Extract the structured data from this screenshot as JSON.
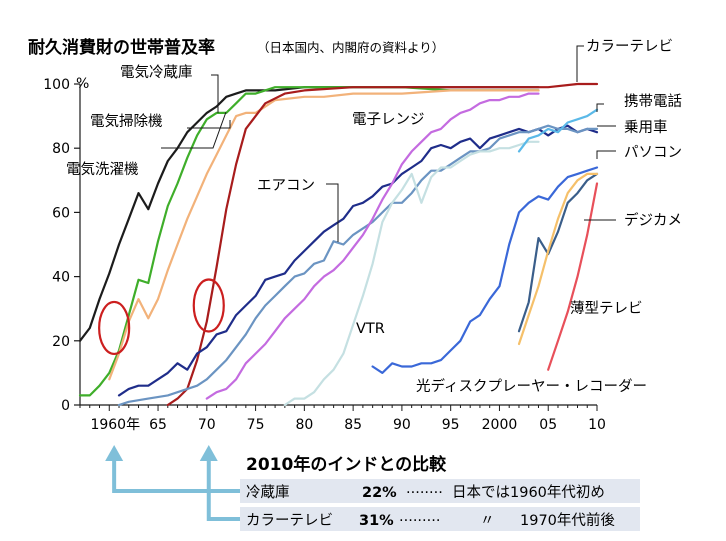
{
  "chart_data": {
    "type": "line",
    "title": "耐久消費財の世帯普及率",
    "subtitle": "（日本国内、内閣府の資料より）",
    "ylabel": "%",
    "ylim": [
      0,
      100
    ],
    "xlim": [
      1957,
      2010
    ],
    "y_ticks": [
      "0",
      "20",
      "40",
      "60",
      "80",
      "100"
    ],
    "x_ticks": [
      {
        "value": 1960,
        "label": "1960年"
      },
      {
        "value": 1965,
        "label": "65"
      },
      {
        "value": 1970,
        "label": "70"
      },
      {
        "value": 1975,
        "label": "75"
      },
      {
        "value": 1980,
        "label": "80"
      },
      {
        "value": 1985,
        "label": "85"
      },
      {
        "value": 1990,
        "label": "90"
      },
      {
        "value": 1995,
        "label": "95"
      },
      {
        "value": 2000,
        "label": "2000"
      },
      {
        "value": 2005,
        "label": "05"
      },
      {
        "value": 2010,
        "label": "10"
      }
    ],
    "series": [
      {
        "name": "電気洗濯機",
        "color": "#1c1c1c",
        "x": [
          1957,
          1958,
          1959,
          1960,
          1961,
          1962,
          1963,
          1964,
          1965,
          1966,
          1967,
          1968,
          1969,
          1970,
          1971,
          1972,
          1973,
          1974,
          1975,
          1977,
          1980,
          1985,
          1990,
          1995,
          2000,
          2004
        ],
        "y": [
          20,
          24,
          33,
          41,
          50,
          58,
          66,
          61,
          69,
          76,
          80,
          85,
          88,
          91,
          93,
          96,
          97,
          98,
          98,
          98,
          99,
          99,
          99,
          99,
          99,
          99
        ]
      },
      {
        "name": "電気冷蔵庫",
        "color": "#3fae2a",
        "x": [
          1957,
          1958,
          1959,
          1960,
          1961,
          1962,
          1963,
          1964,
          1965,
          1966,
          1967,
          1968,
          1969,
          1970,
          1971,
          1972,
          1973,
          1974,
          1975,
          1977,
          1980,
          1985,
          1990,
          1995,
          2000,
          2004
        ],
        "y": [
          3,
          3,
          6,
          10,
          17,
          28,
          39,
          38,
          51,
          62,
          69,
          77,
          84,
          89,
          91,
          91,
          94,
          97,
          97,
          99,
          99,
          99,
          99,
          98,
          98,
          98
        ]
      },
      {
        "name": "電気掃除機",
        "color": "#f2b27a",
        "x": [
          1960,
          1961,
          1962,
          1963,
          1964,
          1965,
          1966,
          1967,
          1968,
          1969,
          1970,
          1971,
          1972,
          1973,
          1974,
          1975,
          1977,
          1980,
          1982,
          1985,
          1990,
          1995,
          2000,
          2004
        ],
        "y": [
          8,
          16,
          26,
          33,
          27,
          33,
          42,
          50,
          58,
          65,
          72,
          78,
          84,
          90,
          91,
          91,
          95,
          96,
          96,
          97,
          97,
          98,
          98,
          98
        ]
      },
      {
        "name": "カラーテレビ",
        "color": "#a81c1c",
        "x": [
          1966,
          1967,
          1968,
          1969,
          1970,
          1971,
          1972,
          1973,
          1974,
          1975,
          1976,
          1978,
          1980,
          1985,
          1990,
          1995,
          2000,
          2005,
          2008,
          2010
        ],
        "y": [
          0,
          2,
          5,
          14,
          26,
          43,
          61,
          75,
          86,
          90,
          94,
          97,
          98,
          99,
          99,
          99,
          99,
          99,
          100,
          100
        ]
      },
      {
        "name": "エアコン",
        "color": "#1f2d8a",
        "x": [
          1961,
          1962,
          1963,
          1964,
          1965,
          1966,
          1967,
          1968,
          1969,
          1970,
          1971,
          1972,
          1973,
          1974,
          1975,
          1976,
          1977,
          1978,
          1979,
          1980,
          1981,
          1982,
          1983,
          1984,
          1985,
          1986,
          1987,
          1988,
          1989,
          1990,
          1991,
          1992,
          1993,
          1994,
          1995,
          1996,
          1997,
          1998,
          1999,
          2000,
          2001,
          2002,
          2003,
          2004,
          2005,
          2006,
          2007,
          2008,
          2009,
          2010
        ],
        "y": [
          3,
          5,
          6,
          6,
          8,
          10,
          13,
          11,
          16,
          18,
          22,
          23,
          28,
          31,
          34,
          39,
          40,
          41,
          45,
          48,
          51,
          54,
          56,
          58,
          62,
          63,
          65,
          68,
          69,
          72,
          74,
          76,
          80,
          81,
          80,
          82,
          83,
          80,
          83,
          84,
          85,
          86,
          85,
          86,
          84,
          86,
          87,
          85,
          86,
          85
        ]
      },
      {
        "name": "乗用車",
        "color": "#6b94c2",
        "x": [
          1961,
          1962,
          1964,
          1966,
          1967,
          1968,
          1969,
          1970,
          1971,
          1972,
          1973,
          1974,
          1975,
          1976,
          1977,
          1978,
          1979,
          1980,
          1981,
          1982,
          1983,
          1984,
          1985,
          1986,
          1987,
          1988,
          1989,
          1990,
          1991,
          1992,
          1993,
          1994,
          1995,
          1996,
          1997,
          1998,
          1999,
          2000,
          2001,
          2002,
          2003,
          2004,
          2005,
          2006,
          2007,
          2008,
          2009,
          2010
        ],
        "y": [
          0,
          1,
          2,
          3,
          4,
          5,
          6,
          8,
          11,
          14,
          18,
          22,
          27,
          31,
          34,
          37,
          40,
          41,
          44,
          45,
          51,
          50,
          53,
          55,
          57,
          60,
          63,
          63,
          66,
          70,
          73,
          73,
          75,
          77,
          79,
          79,
          80,
          83,
          84,
          85,
          85,
          86,
          87,
          86,
          86,
          85,
          86,
          86
        ]
      },
      {
        "name": "電子レンジ",
        "color": "#c46be0",
        "x": [
          1970,
          1971,
          1972,
          1973,
          1974,
          1975,
          1976,
          1977,
          1978,
          1979,
          1980,
          1981,
          1982,
          1983,
          1984,
          1985,
          1986,
          1987,
          1988,
          1989,
          1990,
          1991,
          1992,
          1993,
          1994,
          1995,
          1996,
          1997,
          1998,
          1999,
          2000,
          2001,
          2002,
          2003,
          2004
        ],
        "y": [
          2,
          4,
          5,
          8,
          13,
          16,
          19,
          23,
          27,
          30,
          33,
          37,
          40,
          42,
          45,
          49,
          53,
          58,
          64,
          69,
          75,
          79,
          82,
          85,
          86,
          89,
          91,
          92,
          94,
          95,
          95,
          96,
          96,
          97,
          97
        ]
      },
      {
        "name": "VTR",
        "color": "#c5e0e2",
        "x": [
          1978,
          1979,
          1980,
          1981,
          1982,
          1983,
          1984,
          1985,
          1986,
          1987,
          1988,
          1989,
          1990,
          1991,
          1992,
          1993,
          1994,
          1995,
          1996,
          1997,
          1998,
          1999,
          2000,
          2001,
          2002,
          2003,
          2004
        ],
        "y": [
          0,
          2,
          2,
          4,
          8,
          11,
          16,
          25,
          34,
          44,
          57,
          63,
          67,
          72,
          63,
          71,
          74,
          74,
          76,
          78,
          79,
          79,
          80,
          80,
          81,
          82,
          82
        ]
      },
      {
        "name": "携帯電話",
        "color": "#5bb9e8",
        "x": [
          2002,
          2003,
          2004,
          2005,
          2006,
          2007,
          2008,
          2009,
          2010
        ],
        "y": [
          79,
          83,
          84,
          86,
          85,
          88,
          89,
          90,
          92
        ]
      },
      {
        "name": "パソコン",
        "color": "#3a68d8",
        "x": [
          1987,
          1988,
          1989,
          1990,
          1991,
          1992,
          1993,
          1994,
          1995,
          1996,
          1997,
          1998,
          1999,
          2000,
          2001,
          2002,
          2003,
          2004,
          2005,
          2006,
          2007,
          2008,
          2009,
          2010
        ],
        "y": [
          12,
          10,
          13,
          12,
          12,
          13,
          13,
          14,
          17,
          20,
          26,
          28,
          33,
          37,
          50,
          60,
          63,
          65,
          64,
          68,
          71,
          72,
          73,
          74
        ]
      },
      {
        "name": "デジカメ",
        "color": "#3a5e8a",
        "x": [
          2002,
          2003,
          2004,
          2005,
          2006,
          2007,
          2008,
          2009,
          2010
        ],
        "y": [
          23,
          32,
          52,
          47,
          54,
          63,
          66,
          70,
          72
        ]
      },
      {
        "name": "光ディスクプレーヤー・レコーダー",
        "color": "#f5c06a",
        "x": [
          2002,
          2003,
          2004,
          2005,
          2006,
          2007,
          2008,
          2009,
          2010
        ],
        "y": [
          19,
          28,
          37,
          48,
          58,
          66,
          70,
          72,
          72
        ]
      },
      {
        "name": "薄型テレビ",
        "color": "#e8505a",
        "x": [
          2005,
          2006,
          2007,
          2008,
          2009,
          2010
        ],
        "y": [
          11,
          20,
          29,
          40,
          53,
          69
        ]
      }
    ],
    "annotations": [
      {
        "text": "電気冷蔵庫",
        "target": "電気冷蔵庫"
      },
      {
        "text": "電気掃除機",
        "target": "電気掃除機"
      },
      {
        "text": "電気洗濯機",
        "target": "電気洗濯機"
      },
      {
        "text": "カラーテレビ",
        "target": "カラーテレビ"
      },
      {
        "text": "電子レンジ",
        "target": "電子レンジ"
      },
      {
        "text": "エアコン",
        "target": "エアコン"
      },
      {
        "text": "VTR",
        "target": "VTR"
      },
      {
        "text": "携帯電話",
        "target": "携帯電話"
      },
      {
        "text": "乗用車",
        "target": "乗用車"
      },
      {
        "text": "パソコン",
        "target": "パソコン"
      },
      {
        "text": "デジカメ",
        "target": "デジカメ"
      },
      {
        "text": "薄型テレビ",
        "target": "薄型テレビ"
      },
      {
        "text": "光ディスクプレーヤー・レコーダー",
        "target": "光ディスクプレーヤー・レコーダー"
      }
    ],
    "highlight_circles": [
      {
        "x": 1960.5,
        "y": 24,
        "color": "#cc1f1f"
      },
      {
        "x": 1970.2,
        "y": 31,
        "color": "#cc1f1f"
      }
    ]
  },
  "comparison": {
    "title": "2010年のインドとの比較",
    "arrow_color": "#7fbfd9",
    "rows": [
      {
        "item": "冷蔵庫",
        "pct": "22%",
        "dots": "········",
        "note": "日本では1960年代初め",
        "arrow_from_year": 1960.5
      },
      {
        "item": "カラーテレビ",
        "pct": "31%",
        "dots": "·········",
        "ditto": "〃",
        "note": "1970年代前後",
        "arrow_from_year": 1970.2
      }
    ]
  }
}
